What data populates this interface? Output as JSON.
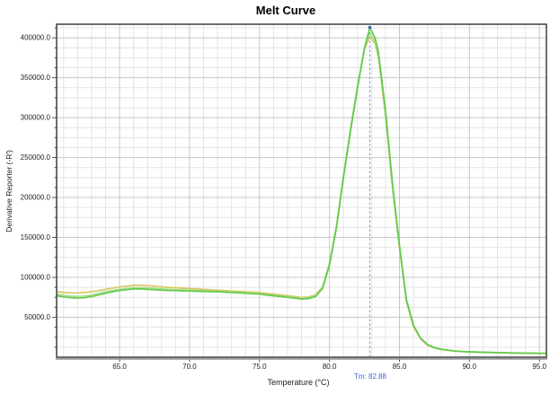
{
  "window": {
    "title": "Melt Curve"
  },
  "chart_data": {
    "type": "line",
    "title": "Melt Curve",
    "xlabel": "Temperature (°C)",
    "ylabel": "Derivative Reporter (-R')",
    "xlim": [
      60.5,
      95.5
    ],
    "ylim": [
      0,
      417000
    ],
    "grid": {
      "on": true,
      "x_minor_step": 1,
      "x_major_step": 5,
      "y_minor_step": 12500,
      "y_major_step": 50000
    },
    "x_ticks": [
      65,
      70,
      75,
      80,
      85,
      90,
      95
    ],
    "x_tick_labels": [
      "65.0",
      "70.0",
      "75.0",
      "80.0",
      "85.0",
      "90.0",
      "95.0"
    ],
    "y_ticks": [
      50000,
      100000,
      150000,
      200000,
      250000,
      300000,
      350000,
      400000
    ],
    "y_tick_labels": [
      "50000.0",
      "100000.0",
      "150000.0",
      "200000.0",
      "250000.0",
      "300000.0",
      "350000.0",
      "400000.0"
    ],
    "tm_marker": {
      "label": "Tm: 82.88",
      "x": 82.88,
      "peak_y": 413000,
      "line_color": "#7ba7e0",
      "label_color": "#3a66cc"
    },
    "legend": {
      "visible": false
    },
    "x": [
      60.5,
      61,
      61.5,
      62,
      62.5,
      63,
      63.5,
      64,
      64.5,
      65,
      65.5,
      66,
      66.5,
      67,
      67.5,
      68,
      68.5,
      69,
      69.5,
      70,
      70.5,
      71,
      71.5,
      72,
      72.5,
      73,
      73.5,
      74,
      74.5,
      75,
      75.5,
      76,
      76.5,
      77,
      77.5,
      78,
      78.5,
      79,
      79.5,
      80,
      80.5,
      81,
      81.5,
      82,
      82.5,
      82.88,
      83.25,
      83.5,
      84,
      84.5,
      85,
      85.5,
      86,
      86.5,
      87,
      87.5,
      88,
      88.5,
      89,
      89.5,
      90,
      91,
      92,
      93,
      94,
      95,
      95.5
    ],
    "series": [
      {
        "name": "melt-curve-well-yellow",
        "color": "#d9c868",
        "y": [
          82000,
          81000,
          80500,
          80500,
          81000,
          82000,
          83500,
          85000,
          86500,
          88000,
          89000,
          90000,
          90000,
          89500,
          89000,
          88000,
          87500,
          87000,
          86500,
          86000,
          85500,
          85000,
          84500,
          84000,
          83500,
          83000,
          82500,
          82000,
          81500,
          81000,
          80000,
          79000,
          78000,
          77000,
          76000,
          75000,
          75500,
          78000,
          88000,
          118000,
          165000,
          228000,
          286000,
          340000,
          386000,
          401000,
          393000,
          375000,
          303000,
          212000,
          136000,
          69000,
          38000,
          23000,
          15000,
          11500,
          9500,
          8400,
          7500,
          7000,
          6600,
          6000,
          5600,
          5200,
          5000,
          4800,
          4700
        ]
      },
      {
        "name": "melt-curve-well-lightgreen",
        "color": "#a8e08e",
        "y": [
          79000,
          77500,
          76500,
          76000,
          76500,
          78000,
          80000,
          82000,
          83500,
          85000,
          86000,
          87000,
          87000,
          86500,
          86000,
          85500,
          85000,
          84500,
          84500,
          84000,
          83500,
          83500,
          83000,
          82500,
          82000,
          81500,
          81000,
          80500,
          80000,
          79500,
          78500,
          77500,
          76500,
          75500,
          74500,
          74000,
          74500,
          77000,
          87000,
          117000,
          164000,
          227000,
          285000,
          339000,
          388000,
          406000,
          396000,
          378000,
          306000,
          215000,
          138000,
          70000,
          39000,
          23500,
          15500,
          11800,
          9800,
          8600,
          7700,
          7100,
          6700,
          6100,
          5700,
          5300,
          5000,
          4800,
          4700
        ]
      },
      {
        "name": "melt-curve-well-green",
        "color": "#63ca4a",
        "y": [
          77000,
          75500,
          74500,
          74000,
          74500,
          76000,
          78000,
          80000,
          82000,
          83500,
          84500,
          85500,
          85500,
          85000,
          84500,
          84000,
          83500,
          83500,
          83000,
          83000,
          82500,
          82500,
          82000,
          82000,
          81500,
          81000,
          80500,
          80000,
          79500,
          79000,
          78000,
          77000,
          76000,
          75000,
          74000,
          73000,
          73500,
          76000,
          86000,
          115000,
          162000,
          225000,
          283000,
          337000,
          387000,
          413000,
          400000,
          382000,
          310000,
          218000,
          140000,
          72000,
          40000,
          24000,
          16000,
          12000,
          10000,
          8800,
          7800,
          7200,
          6800,
          6200,
          5800,
          5400,
          5100,
          4900,
          4800
        ]
      }
    ]
  }
}
